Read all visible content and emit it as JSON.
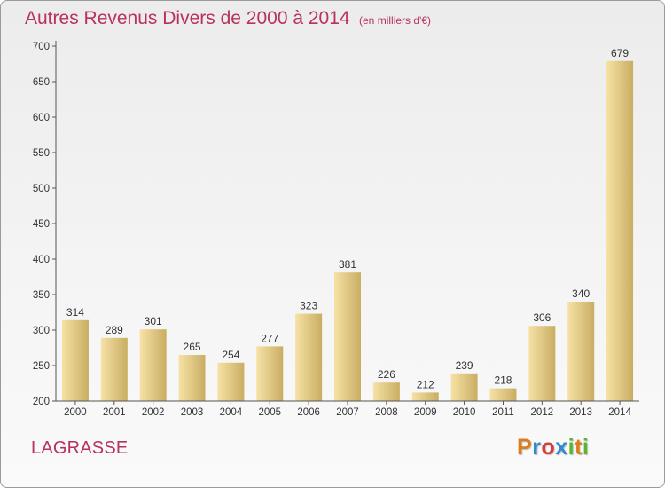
{
  "header": {
    "title": "Autres Revenus Divers de 2000 à 2014",
    "subtitle": "(en milliers d'€)"
  },
  "footer": {
    "location": "LAGRASSE",
    "logo_text": "Proxiti",
    "logo_colors": [
      "#e07b1a",
      "#2e8bd0",
      "#d83a3a",
      "#2e8bd0",
      "#5cb531",
      "#e07b1a",
      "#5cb531"
    ]
  },
  "chart_data": {
    "type": "bar",
    "title": "Autres Revenus Divers de 2000 à 2014",
    "subtitle": "(en milliers d'€)",
    "xlabel": "",
    "ylabel": "",
    "categories": [
      "2000",
      "2001",
      "2002",
      "2003",
      "2004",
      "2005",
      "2006",
      "2007",
      "2008",
      "2009",
      "2010",
      "2011",
      "2012",
      "2013",
      "2014"
    ],
    "values": [
      314,
      289,
      301,
      265,
      254,
      277,
      323,
      381,
      226,
      212,
      239,
      218,
      306,
      340,
      679
    ],
    "ylim": [
      200,
      700
    ],
    "yticks": [
      200,
      250,
      300,
      350,
      400,
      450,
      500,
      550,
      600,
      650,
      700
    ],
    "grid": false,
    "bar_color_light": "#f6e2a6",
    "bar_color_dark": "#c9ad62",
    "axis_color": "#555555"
  }
}
